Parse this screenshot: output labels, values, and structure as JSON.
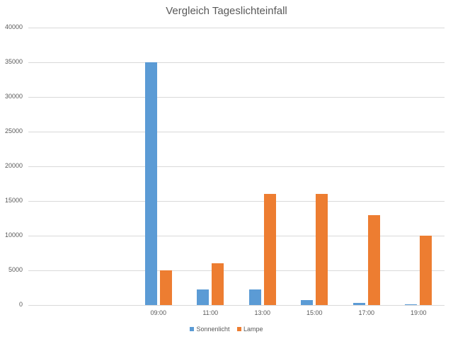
{
  "chart_data": {
    "type": "bar",
    "title": "Vergleich Tageslichteinfall",
    "xlabel": "",
    "ylabel": "",
    "categories": [
      "",
      "",
      "09:00",
      "11:00",
      "13:00",
      "15:00",
      "17:00",
      "19:00"
    ],
    "series": [
      {
        "name": "Sonnenlicht",
        "color": "#5b9bd5",
        "values": [
          null,
          null,
          35000,
          2250,
          2250,
          700,
          300,
          100
        ]
      },
      {
        "name": "Lampe",
        "color": "#ed7d31",
        "values": [
          null,
          null,
          5000,
          6000,
          16000,
          16000,
          13000,
          10000
        ]
      }
    ],
    "ylim": [
      0,
      40000
    ],
    "yticks": [
      0,
      5000,
      10000,
      15000,
      20000,
      25000,
      30000,
      35000,
      40000
    ],
    "grid": true,
    "legend_position": "bottom"
  }
}
